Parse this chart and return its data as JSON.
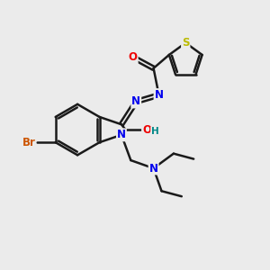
{
  "bg_color": "#ebebeb",
  "bond_color": "#1a1a1a",
  "bond_width": 1.8,
  "atom_colors": {
    "Br": "#cc5500",
    "N": "#0000ee",
    "O": "#ee0000",
    "S": "#bbbb00",
    "H": "#008888",
    "C": "#1a1a1a"
  },
  "font_size": 8.5,
  "fig_size": [
    3.0,
    3.0
  ]
}
